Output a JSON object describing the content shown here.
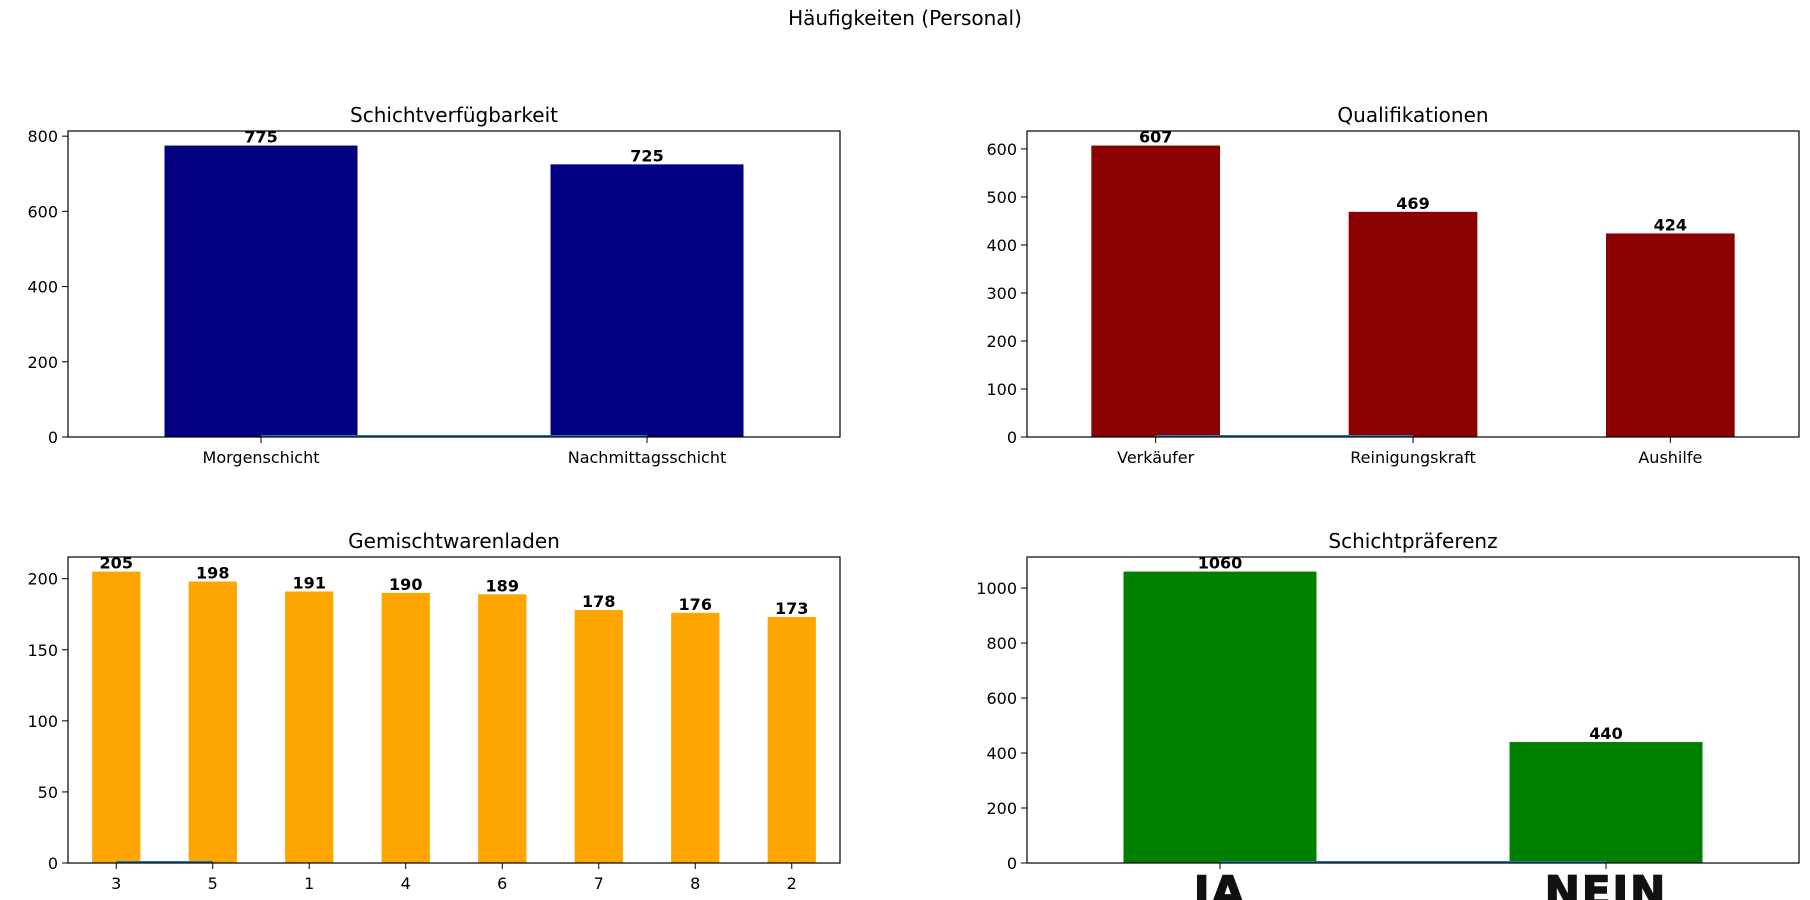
{
  "figure": {
    "suptitle": "Häufigkeiten (Personal)"
  },
  "chart_data": [
    {
      "type": "bar",
      "title": "Schichtverfügbarkeit",
      "categories": [
        "Morgenschicht",
        "Nachmittagsschicht"
      ],
      "values": [
        775,
        725
      ],
      "ylim": [
        0,
        813.75
      ],
      "yticks": [
        0,
        200,
        400,
        600,
        800
      ],
      "color": "#000080",
      "data_labels": true,
      "overlay_line": {
        "color": "#1f77b4",
        "y": [
          0,
          0
        ]
      }
    },
    {
      "type": "bar",
      "title": "Qualifikationen",
      "categories": [
        "Verkäufer",
        "Reinigungskraft",
        "Aushilfe"
      ],
      "values": [
        607,
        469,
        424
      ],
      "ylim": [
        0,
        637.35
      ],
      "yticks": [
        0,
        100,
        200,
        300,
        400,
        500,
        600
      ],
      "color": "#8b0000",
      "data_labels": true,
      "overlay_line": {
        "color": "#1f77b4",
        "y": [
          0,
          0
        ]
      }
    },
    {
      "type": "bar",
      "title": "Gemischtwarenladen",
      "categories": [
        "3",
        "5",
        "1",
        "4",
        "6",
        "7",
        "8",
        "2"
      ],
      "values": [
        205,
        198,
        191,
        190,
        189,
        178,
        176,
        173
      ],
      "ylim": [
        0,
        215.25
      ],
      "yticks": [
        0,
        50,
        100,
        150,
        200
      ],
      "color": "#ffa500",
      "data_labels": true,
      "overlay_line": {
        "color": "#1f77b4",
        "y": [
          0,
          0
        ]
      }
    },
    {
      "type": "bar",
      "title": "Schichtpräferenz",
      "categories": [
        "JA",
        "NEIN"
      ],
      "values": [
        1060,
        440
      ],
      "ylim": [
        0,
        1113
      ],
      "yticks": [
        0,
        200,
        400,
        600,
        800,
        1000
      ],
      "color": "#008000",
      "data_labels": true,
      "handwritten_tick_labels": true,
      "overlay_line": {
        "color": "#1f77b4",
        "y": [
          0,
          0
        ]
      }
    }
  ]
}
